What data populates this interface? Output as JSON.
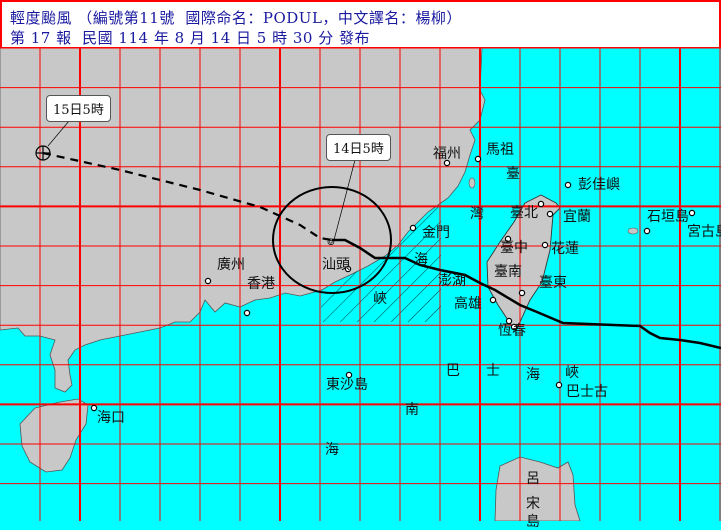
{
  "header": {
    "line1": "輕度颱風 （編號第11號  國際命名：PODUL，中文譯名：楊柳）",
    "line2": "第 17 報  民國 114 年 8 月 14 日 5 時 30 分 發布"
  },
  "callouts": {
    "forecast": "15日5時",
    "current": "14日5時"
  },
  "places": {
    "fuzhou": "福州",
    "matsu": "馬祖",
    "pengjia": "彭佳嶼",
    "taipei": "臺北",
    "yilan": "宜蘭",
    "kinmen": "金門",
    "taichung": "臺中",
    "hualien": "花蓮",
    "penghu": "澎湖",
    "tainan": "臺南",
    "taitung": "臺東",
    "kaohsiung": "高雄",
    "hengchun": "恆春",
    "ishigaki": "石垣島",
    "miyako": "宮古島",
    "guangzhou": "廣州",
    "hongkong": "香港",
    "shantou": "汕頭",
    "dongsha": "東沙島",
    "haikou": "海口",
    "basco": "巴士古"
  },
  "seas": {
    "taiwan_strait": [
      "臺",
      "灣",
      "海",
      "峽"
    ],
    "bashi_channel": [
      "巴",
      "士",
      "海",
      "峽"
    ],
    "south_china_sea": [
      "南",
      "海"
    ],
    "luzon": [
      "呂",
      "宋",
      "島"
    ]
  },
  "colors": {
    "sea": "#00ffff",
    "land": "#c8c8c8",
    "grid": "#ff0000",
    "track": "#000000",
    "header_text": "#1a1aa0"
  }
}
